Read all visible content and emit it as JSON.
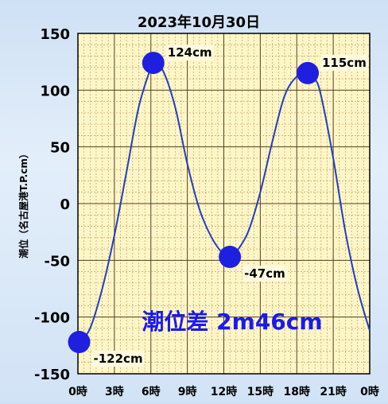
{
  "chart_data": {
    "type": "line",
    "title": "2023年10月30日",
    "ylabel": "潮位（名古屋港T.P.cm）",
    "xlabel": "",
    "ylim": [
      -150,
      150
    ],
    "yticks": [
      150,
      100,
      50,
      0,
      -50,
      -100,
      -150
    ],
    "ytick_labels": [
      "150",
      "100",
      "50",
      "0",
      "-50",
      "-100",
      "-150"
    ],
    "xlim": [
      0,
      24
    ],
    "xticks": [
      0,
      3,
      6,
      9,
      12,
      15,
      18,
      21,
      24
    ],
    "xtick_labels": [
      "0時",
      "3時",
      "6時",
      "9時",
      "12時",
      "15時",
      "18時",
      "21時",
      "0時"
    ],
    "grid": true,
    "series": [
      {
        "color": "#1f3fbf",
        "x": [
          0,
          1,
          2,
          3,
          4,
          5,
          6,
          6.2,
          7,
          8,
          9,
          10,
          11,
          12,
          12.5,
          13,
          14,
          15,
          16,
          17,
          18,
          18.9,
          19.5,
          20,
          21,
          22,
          23,
          24
        ],
        "y": [
          -125,
          -110,
          -75,
          -28,
          28,
          85,
          120,
          124,
          117,
          85,
          35,
          -5,
          -30,
          -45,
          -47,
          -43,
          -25,
          10,
          55,
          95,
          112,
          115,
          110,
          95,
          40,
          -25,
          -75,
          -112
        ]
      }
    ],
    "annotations": [
      {
        "x": 0.1,
        "y": -122,
        "label": "-122cm",
        "position": "bottom-right"
      },
      {
        "x": 6.2,
        "y": 124,
        "label": "124cm",
        "position": "top-right"
      },
      {
        "x": 12.5,
        "y": -47,
        "label": "-47cm",
        "position": "bottom-right"
      },
      {
        "x": 18.9,
        "y": 115,
        "label": "115cm",
        "position": "top-right"
      }
    ],
    "overlay_text": "潮位差 2m46cm",
    "colors": {
      "plot_bg": "#fff6c8",
      "grid_minor": "#b8914a",
      "grid_major": "#5a3d1a",
      "line": "#1f3fbf",
      "marker": "#1f1fe0",
      "overlay_text": "#1a1af0"
    }
  }
}
